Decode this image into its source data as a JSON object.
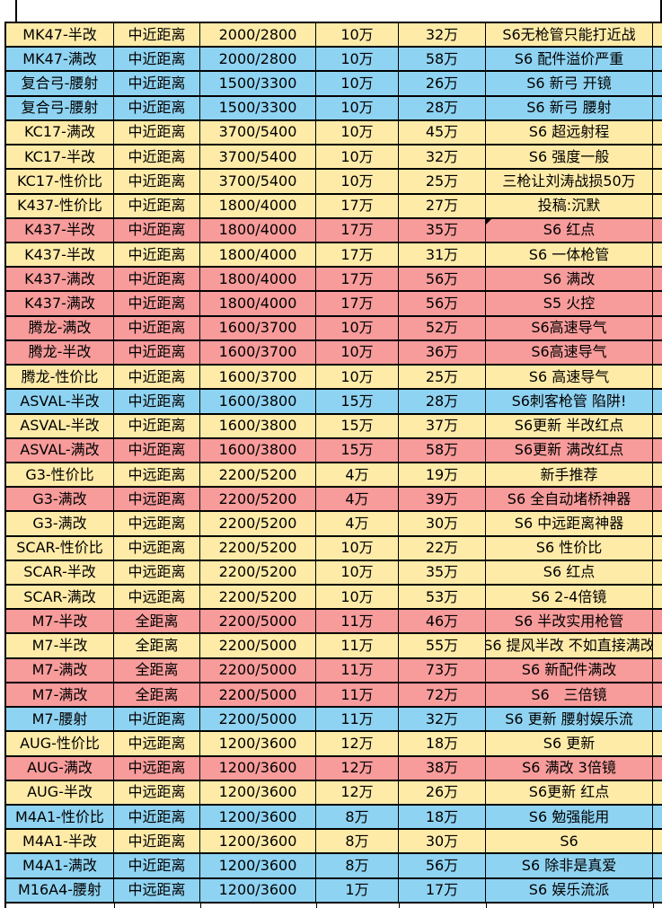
{
  "colors": {
    "row_yellow": "#FFEBA8",
    "row_blue": "#8FD3F2",
    "row_pink": "#F79B9B",
    "grid_border": "#000000",
    "sheet_background": "#FFFFFF",
    "text": "#000000"
  },
  "table": {
    "rows": [
      {
        "weapon": "MK47-半改",
        "range": "中近距离",
        "stats": "2000/2800",
        "cost": "10万",
        "total": "32万",
        "note": "S6无枪管只能打近战",
        "fill": "yellow"
      },
      {
        "weapon": "MK47-满改",
        "range": "中近距离",
        "stats": "2000/2800",
        "cost": "10万",
        "total": "58万",
        "note": "S6 配件溢价严重",
        "fill": "blue"
      },
      {
        "weapon": "复合弓-腰射",
        "range": "中近距离",
        "stats": "1500/3300",
        "cost": "10万",
        "total": "26万",
        "note": "S6 新弓 开镜",
        "fill": "blue"
      },
      {
        "weapon": "复合弓-腰射",
        "range": "中近距离",
        "stats": "1500/3300",
        "cost": "10万",
        "total": "28万",
        "note": "S6 新弓 腰射",
        "fill": "blue"
      },
      {
        "weapon": "KC17-满改",
        "range": "中近距离",
        "stats": "3700/5400",
        "cost": "10万",
        "total": "45万",
        "note": "S6 超远射程",
        "fill": "yellow"
      },
      {
        "weapon": "KC17-半改",
        "range": "中近距离",
        "stats": "3700/5400",
        "cost": "10万",
        "total": "32万",
        "note": "S6 强度一般",
        "fill": "yellow"
      },
      {
        "weapon": "KC17-性价比",
        "range": "中近距离",
        "stats": "3700/5400",
        "cost": "10万",
        "total": "25万",
        "note": "三枪让刘涛战损50万",
        "fill": "yellow"
      },
      {
        "weapon": "K437-性价比",
        "range": "中近距离",
        "stats": "1800/4000",
        "cost": "17万",
        "total": "27万",
        "note": "投稿:沉默",
        "fill": "yellow"
      },
      {
        "weapon": "K437-半改",
        "range": "中近距离",
        "stats": "1800/4000",
        "cost": "17万",
        "total": "35万",
        "note": "S6 红点",
        "fill": "pink",
        "comment_marker": true
      },
      {
        "weapon": "K437-半改",
        "range": "中近距离",
        "stats": "1800/4000",
        "cost": "17万",
        "total": "31万",
        "note": "S6 一体枪管",
        "fill": "yellow"
      },
      {
        "weapon": "K437-满改",
        "range": "中近距离",
        "stats": "1800/4000",
        "cost": "17万",
        "total": "56万",
        "note": "S6 满改",
        "fill": "pink"
      },
      {
        "weapon": "K437-满改",
        "range": "中近距离",
        "stats": "1800/4000",
        "cost": "17万",
        "total": "56万",
        "note": "S5 火控",
        "fill": "pink"
      },
      {
        "weapon": "腾龙-满改",
        "range": "中近距离",
        "stats": "1600/3700",
        "cost": "10万",
        "total": "52万",
        "note": "S6高速导气",
        "fill": "pink"
      },
      {
        "weapon": "腾龙-半改",
        "range": "中近距离",
        "stats": "1600/3700",
        "cost": "10万",
        "total": "36万",
        "note": "S6高速导气",
        "fill": "pink"
      },
      {
        "weapon": "腾龙-性价比",
        "range": "中近距离",
        "stats": "1600/3700",
        "cost": "10万",
        "total": "25万",
        "note": "S6 高速导气",
        "fill": "yellow"
      },
      {
        "weapon": "ASVAL-半改",
        "range": "中近距离",
        "stats": "1600/3800",
        "cost": "15万",
        "total": "28万",
        "note": "S6刺客枪管 陷阱!",
        "fill": "blue"
      },
      {
        "weapon": "ASVAL-半改",
        "range": "中近距离",
        "stats": "1600/3800",
        "cost": "15万",
        "total": "37万",
        "note": "S6更新 半改红点",
        "fill": "yellow"
      },
      {
        "weapon": "ASVAL-满改",
        "range": "中近距离",
        "stats": "1600/3800",
        "cost": "15万",
        "total": "58万",
        "note": "S6更新 满改红点",
        "fill": "pink"
      },
      {
        "weapon": "G3-性价比",
        "range": "中远距离",
        "stats": "2200/5200",
        "cost": "4万",
        "total": "19万",
        "note": "新手推荐",
        "fill": "yellow"
      },
      {
        "weapon": "G3-满改",
        "range": "中远距离",
        "stats": "2200/5200",
        "cost": "4万",
        "total": "39万",
        "note": "S6 全自动堵桥神器",
        "fill": "pink"
      },
      {
        "weapon": "G3-满改",
        "range": "中远距离",
        "stats": "2200/5200",
        "cost": "4万",
        "total": "30万",
        "note": "S6 中远距离神器",
        "fill": "yellow"
      },
      {
        "weapon": "SCAR-性价比",
        "range": "中远距离",
        "stats": "2200/5200",
        "cost": "10万",
        "total": "22万",
        "note": "S6 性价比",
        "fill": "yellow"
      },
      {
        "weapon": "SCAR-半改",
        "range": "中远距离",
        "stats": "2200/5200",
        "cost": "10万",
        "total": "35万",
        "note": "S6 红点",
        "fill": "yellow"
      },
      {
        "weapon": "SCAR-满改",
        "range": "中远距离",
        "stats": "2200/5200",
        "cost": "10万",
        "total": "53万",
        "note": "S6 2-4倍镜",
        "fill": "yellow"
      },
      {
        "weapon": "M7-半改",
        "range": "全距离",
        "stats": "2200/5000",
        "cost": "11万",
        "total": "46万",
        "note": "S6 半改实用枪管",
        "fill": "pink"
      },
      {
        "weapon": "M7-半改",
        "range": "全距离",
        "stats": "2200/5000",
        "cost": "11万",
        "total": "55万",
        "note": "S6 提风半改 不如直接满改",
        "fill": "yellow",
        "overflow": true
      },
      {
        "weapon": "M7-满改",
        "range": "全距离",
        "stats": "2200/5000",
        "cost": "11万",
        "total": "73万",
        "note": "S6 新配件满改",
        "fill": "pink"
      },
      {
        "weapon": "M7-满改",
        "range": "全距离",
        "stats": "2200/5000",
        "cost": "11万",
        "total": "72万",
        "note": "S6　三倍镜",
        "fill": "pink"
      },
      {
        "weapon": "M7-腰射",
        "range": "中近距离",
        "stats": "2200/5000",
        "cost": "11万",
        "total": "32万",
        "note": "S6 更新 腰射娱乐流",
        "fill": "blue"
      },
      {
        "weapon": "AUG-性价比",
        "range": "中远距离",
        "stats": "1200/3600",
        "cost": "12万",
        "total": "18万",
        "note": "S6 更新",
        "fill": "yellow"
      },
      {
        "weapon": "AUG-满改",
        "range": "中远距离",
        "stats": "1200/3600",
        "cost": "12万",
        "total": "38万",
        "note": "S6 满改 3倍镜",
        "fill": "pink"
      },
      {
        "weapon": "AUG-半改",
        "range": "中远距离",
        "stats": "1200/3600",
        "cost": "12万",
        "total": "26万",
        "note": "S6更新 红点",
        "fill": "yellow"
      },
      {
        "weapon": "M4A1-性价比",
        "range": "中近距离",
        "stats": "1200/3600",
        "cost": "8万",
        "total": "18万",
        "note": "S6 勉强能用",
        "fill": "blue"
      },
      {
        "weapon": "M4A1-半改",
        "range": "中近距离",
        "stats": "1200/3600",
        "cost": "8万",
        "total": "30万",
        "note": "S6",
        "fill": "yellow"
      },
      {
        "weapon": "M4A1-满改",
        "range": "中近距离",
        "stats": "1200/3600",
        "cost": "8万",
        "total": "56万",
        "note": "S6 除非是真爱",
        "fill": "blue"
      },
      {
        "weapon": "M16A4-腰射",
        "range": "中远距离",
        "stats": "1200/3600",
        "cost": "1万",
        "total": "17万",
        "note": "S6 娱乐流派",
        "fill": "blue"
      }
    ]
  }
}
